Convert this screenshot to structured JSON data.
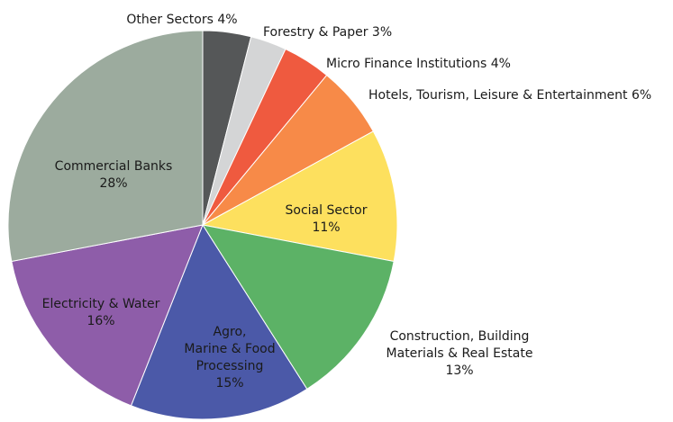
{
  "chart_data": {
    "type": "pie",
    "title": "",
    "start_angle_deg": 0,
    "direction": "clockwise",
    "slices": [
      {
        "label_lines": [
          "Other Sectors 4%"
        ],
        "name": "Other Sectors",
        "value": 4,
        "color": "#555758"
      },
      {
        "label_lines": [
          "Forestry & Paper 3%"
        ],
        "name": "Forestry & Paper",
        "value": 3,
        "color": "#d4d5d6"
      },
      {
        "label_lines": [
          "Micro Finance Institutions 4%"
        ],
        "name": "Micro Finance Institutions",
        "value": 4,
        "color": "#ef5a3f"
      },
      {
        "label_lines": [
          "Hotels, Tourism, Leisure & Entertainment 6%"
        ],
        "name": "Hotels, Tourism, Leisure & Entertainment",
        "value": 6,
        "color": "#f78a48"
      },
      {
        "label_lines": [
          "Social Sector",
          "11%"
        ],
        "name": "Social Sector",
        "value": 11,
        "color": "#fde05e"
      },
      {
        "label_lines": [
          "Construction, Building",
          "Materials & Real Estate",
          "13%"
        ],
        "name": "Construction, Building Materials & Real Estate",
        "value": 13,
        "color": "#5cb266"
      },
      {
        "label_lines": [
          "Agro,",
          "Marine & Food",
          "Processing",
          "15%"
        ],
        "name": "Agro, Marine & Food Processing",
        "value": 15,
        "color": "#4b59a8"
      },
      {
        "label_lines": [
          "Electricity & Water",
          "16%"
        ],
        "name": "Electricity & Water",
        "value": 16,
        "color": "#8e5da9"
      },
      {
        "label_lines": [
          "Commercial Banks",
          "28%"
        ],
        "name": "Commercial Banks",
        "value": 28,
        "color": "#9cab9e"
      }
    ],
    "total": 100
  }
}
